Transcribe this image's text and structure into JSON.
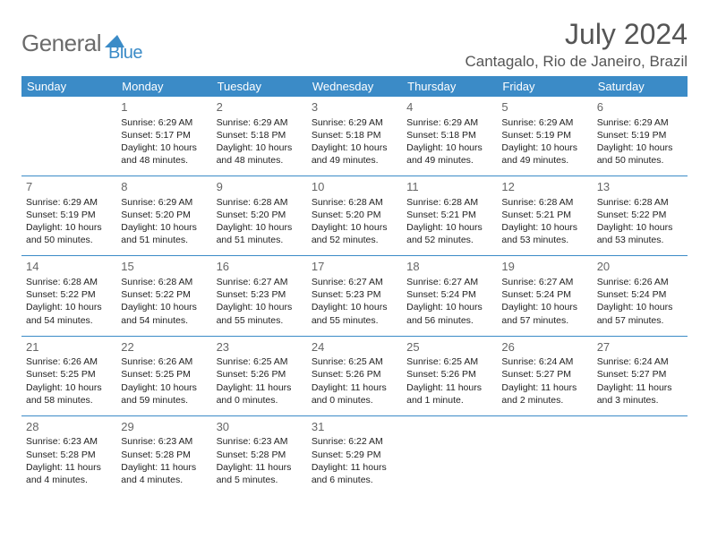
{
  "logo": {
    "word1": "General",
    "word2": "Blue"
  },
  "title": "July 2024",
  "location": "Cantagalo, Rio de Janeiro, Brazil",
  "calendar": {
    "background": "#ffffff",
    "header_bg": "#3b8bc7",
    "header_text_color": "#ffffff",
    "divider_color": "#3b8bc7",
    "body_text_color": "#222222",
    "daynum_color": "#666666",
    "header_fontsize": 13,
    "body_fontsize": 10.5,
    "columns": [
      "Sunday",
      "Monday",
      "Tuesday",
      "Wednesday",
      "Thursday",
      "Friday",
      "Saturday"
    ],
    "weeks": [
      [
        null,
        {
          "n": "1",
          "sunrise": "6:29 AM",
          "sunset": "5:17 PM",
          "daylight": "10 hours and 48 minutes."
        },
        {
          "n": "2",
          "sunrise": "6:29 AM",
          "sunset": "5:18 PM",
          "daylight": "10 hours and 48 minutes."
        },
        {
          "n": "3",
          "sunrise": "6:29 AM",
          "sunset": "5:18 PM",
          "daylight": "10 hours and 49 minutes."
        },
        {
          "n": "4",
          "sunrise": "6:29 AM",
          "sunset": "5:18 PM",
          "daylight": "10 hours and 49 minutes."
        },
        {
          "n": "5",
          "sunrise": "6:29 AM",
          "sunset": "5:19 PM",
          "daylight": "10 hours and 49 minutes."
        },
        {
          "n": "6",
          "sunrise": "6:29 AM",
          "sunset": "5:19 PM",
          "daylight": "10 hours and 50 minutes."
        }
      ],
      [
        {
          "n": "7",
          "sunrise": "6:29 AM",
          "sunset": "5:19 PM",
          "daylight": "10 hours and 50 minutes."
        },
        {
          "n": "8",
          "sunrise": "6:29 AM",
          "sunset": "5:20 PM",
          "daylight": "10 hours and 51 minutes."
        },
        {
          "n": "9",
          "sunrise": "6:28 AM",
          "sunset": "5:20 PM",
          "daylight": "10 hours and 51 minutes."
        },
        {
          "n": "10",
          "sunrise": "6:28 AM",
          "sunset": "5:20 PM",
          "daylight": "10 hours and 52 minutes."
        },
        {
          "n": "11",
          "sunrise": "6:28 AM",
          "sunset": "5:21 PM",
          "daylight": "10 hours and 52 minutes."
        },
        {
          "n": "12",
          "sunrise": "6:28 AM",
          "sunset": "5:21 PM",
          "daylight": "10 hours and 53 minutes."
        },
        {
          "n": "13",
          "sunrise": "6:28 AM",
          "sunset": "5:22 PM",
          "daylight": "10 hours and 53 minutes."
        }
      ],
      [
        {
          "n": "14",
          "sunrise": "6:28 AM",
          "sunset": "5:22 PM",
          "daylight": "10 hours and 54 minutes."
        },
        {
          "n": "15",
          "sunrise": "6:28 AM",
          "sunset": "5:22 PM",
          "daylight": "10 hours and 54 minutes."
        },
        {
          "n": "16",
          "sunrise": "6:27 AM",
          "sunset": "5:23 PM",
          "daylight": "10 hours and 55 minutes."
        },
        {
          "n": "17",
          "sunrise": "6:27 AM",
          "sunset": "5:23 PM",
          "daylight": "10 hours and 55 minutes."
        },
        {
          "n": "18",
          "sunrise": "6:27 AM",
          "sunset": "5:24 PM",
          "daylight": "10 hours and 56 minutes."
        },
        {
          "n": "19",
          "sunrise": "6:27 AM",
          "sunset": "5:24 PM",
          "daylight": "10 hours and 57 minutes."
        },
        {
          "n": "20",
          "sunrise": "6:26 AM",
          "sunset": "5:24 PM",
          "daylight": "10 hours and 57 minutes."
        }
      ],
      [
        {
          "n": "21",
          "sunrise": "6:26 AM",
          "sunset": "5:25 PM",
          "daylight": "10 hours and 58 minutes."
        },
        {
          "n": "22",
          "sunrise": "6:26 AM",
          "sunset": "5:25 PM",
          "daylight": "10 hours and 59 minutes."
        },
        {
          "n": "23",
          "sunrise": "6:25 AM",
          "sunset": "5:26 PM",
          "daylight": "11 hours and 0 minutes."
        },
        {
          "n": "24",
          "sunrise": "6:25 AM",
          "sunset": "5:26 PM",
          "daylight": "11 hours and 0 minutes."
        },
        {
          "n": "25",
          "sunrise": "6:25 AM",
          "sunset": "5:26 PM",
          "daylight": "11 hours and 1 minute."
        },
        {
          "n": "26",
          "sunrise": "6:24 AM",
          "sunset": "5:27 PM",
          "daylight": "11 hours and 2 minutes."
        },
        {
          "n": "27",
          "sunrise": "6:24 AM",
          "sunset": "5:27 PM",
          "daylight": "11 hours and 3 minutes."
        }
      ],
      [
        {
          "n": "28",
          "sunrise": "6:23 AM",
          "sunset": "5:28 PM",
          "daylight": "11 hours and 4 minutes."
        },
        {
          "n": "29",
          "sunrise": "6:23 AM",
          "sunset": "5:28 PM",
          "daylight": "11 hours and 4 minutes."
        },
        {
          "n": "30",
          "sunrise": "6:23 AM",
          "sunset": "5:28 PM",
          "daylight": "11 hours and 5 minutes."
        },
        {
          "n": "31",
          "sunrise": "6:22 AM",
          "sunset": "5:29 PM",
          "daylight": "11 hours and 6 minutes."
        },
        null,
        null,
        null
      ]
    ]
  }
}
